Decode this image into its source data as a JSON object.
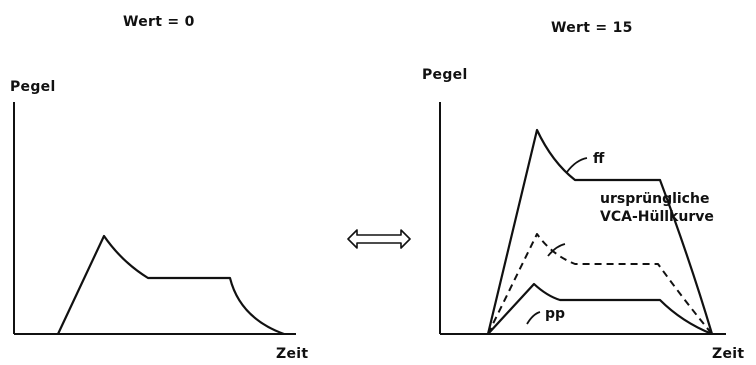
{
  "left_panel": {
    "title": "Wert = 0",
    "y_label": "Pegel",
    "x_label": "Zeit"
  },
  "right_panel": {
    "title": "Wert = 15",
    "y_label": "Pegel",
    "x_label": "Zeit",
    "curve_labels": {
      "ff": "ff",
      "original_line1": "ursprüngliche",
      "original_line2": "VCA-Hüllkurve",
      "pp": "pp"
    }
  },
  "arrow": {
    "icon": "double-arrow-icon",
    "symbol": "⇔"
  }
}
